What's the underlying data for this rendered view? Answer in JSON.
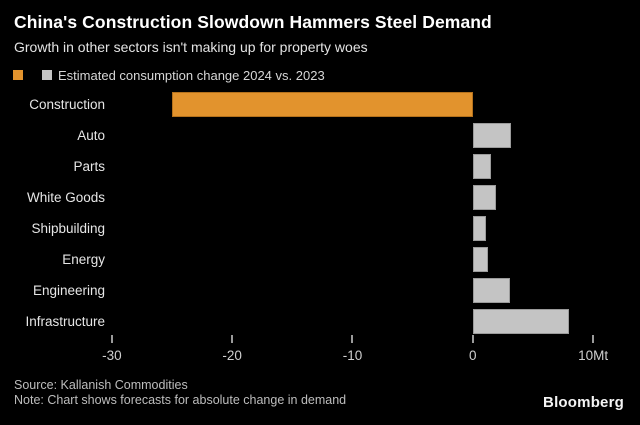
{
  "header": {
    "title": "China's Construction Slowdown Hammers Steel Demand",
    "subtitle": "Growth in other sectors isn't making up for property woes"
  },
  "legend": {
    "label": "Estimated consumption change 2024 vs. 2023"
  },
  "colors": {
    "background": "#000000",
    "construction_bar": "#E2932D",
    "other_bars": "#C4C4C4"
  },
  "chart_data": {
    "type": "bar",
    "orientation": "horizontal",
    "title": "China's Construction Slowdown Hammers Steel Demand",
    "subtitle": "Growth in other sectors isn't making up for property woes",
    "legend": "Estimated consumption change 2024 vs. 2023",
    "legend_position": "top",
    "grid": false,
    "categories": [
      "Construction",
      "Auto",
      "Parts",
      "White Goods",
      "Shipbuilding",
      "Energy",
      "Engineering",
      "Infrastructure"
    ],
    "values": [
      -25,
      3.2,
      1.5,
      1.9,
      1.1,
      1.3,
      3.1,
      8
    ],
    "unit": "Mt",
    "xlabel": "",
    "ylabel": "",
    "xlim": [
      -39.3,
      13.9
    ],
    "x_ticks": [
      -30,
      -20,
      -10,
      0,
      10
    ],
    "x_tick_labels": [
      "-30",
      "-20",
      "-10",
      "0",
      "10Mt"
    ],
    "bar_colors": [
      "#E2932D",
      "#C4C4C4",
      "#C4C4C4",
      "#C4C4C4",
      "#C4C4C4",
      "#C4C4C4",
      "#C4C4C4",
      "#C4C4C4"
    ]
  },
  "footer": {
    "source": "Source: Kallanish Commodities",
    "note": "Note: Chart shows forecasts for absolute change in demand",
    "brand": "Bloomberg"
  }
}
